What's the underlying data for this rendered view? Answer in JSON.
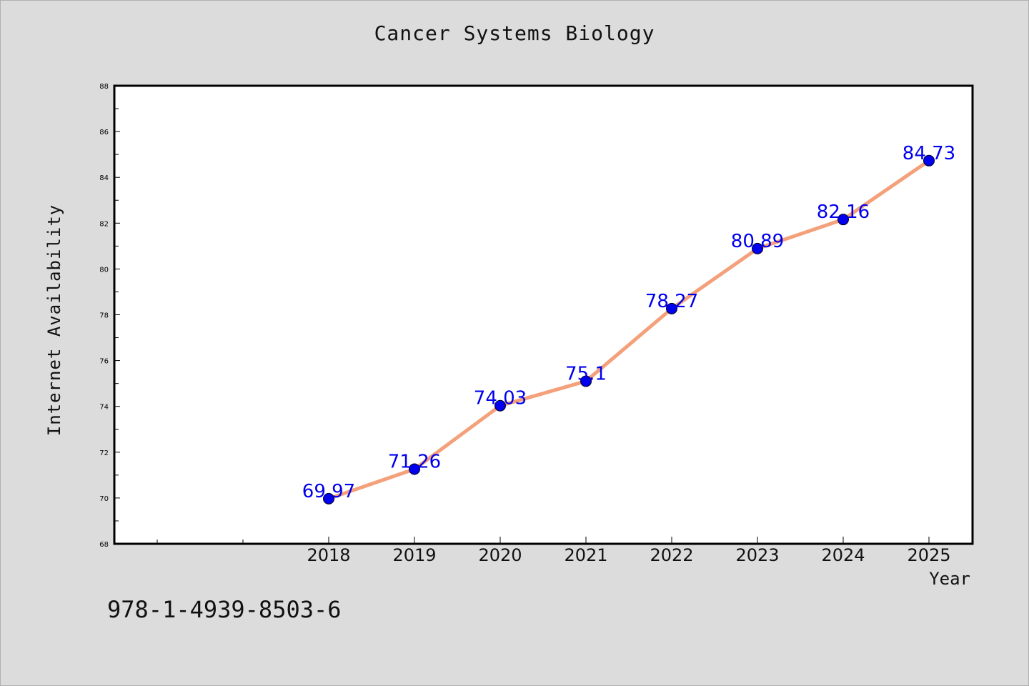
{
  "chart_data": {
    "type": "line",
    "title": "Cancer Systems Biology",
    "xlabel": "Year",
    "ylabel": "Internet Availability",
    "categories": [
      "2018",
      "2019",
      "2020",
      "2021",
      "2022",
      "2023",
      "2024",
      "2025"
    ],
    "values": [
      69.97,
      71.26,
      74.03,
      75.1,
      78.27,
      80.89,
      82.16,
      84.73
    ],
    "data_labels": [
      "69.97",
      "71.26",
      "74.03",
      "75.1",
      "78.27",
      "80.89",
      "82.16",
      "84.73"
    ],
    "ylim": [
      68,
      88
    ],
    "yticks": [
      "68",
      "70",
      "72",
      "74",
      "76",
      "78",
      "80",
      "82",
      "84",
      "86",
      "88"
    ],
    "grid": false,
    "line_color": "#f4a07a",
    "marker_color": "#0000ee",
    "label_color": "#0000ee"
  },
  "note": "978-1-4939-8503-6"
}
